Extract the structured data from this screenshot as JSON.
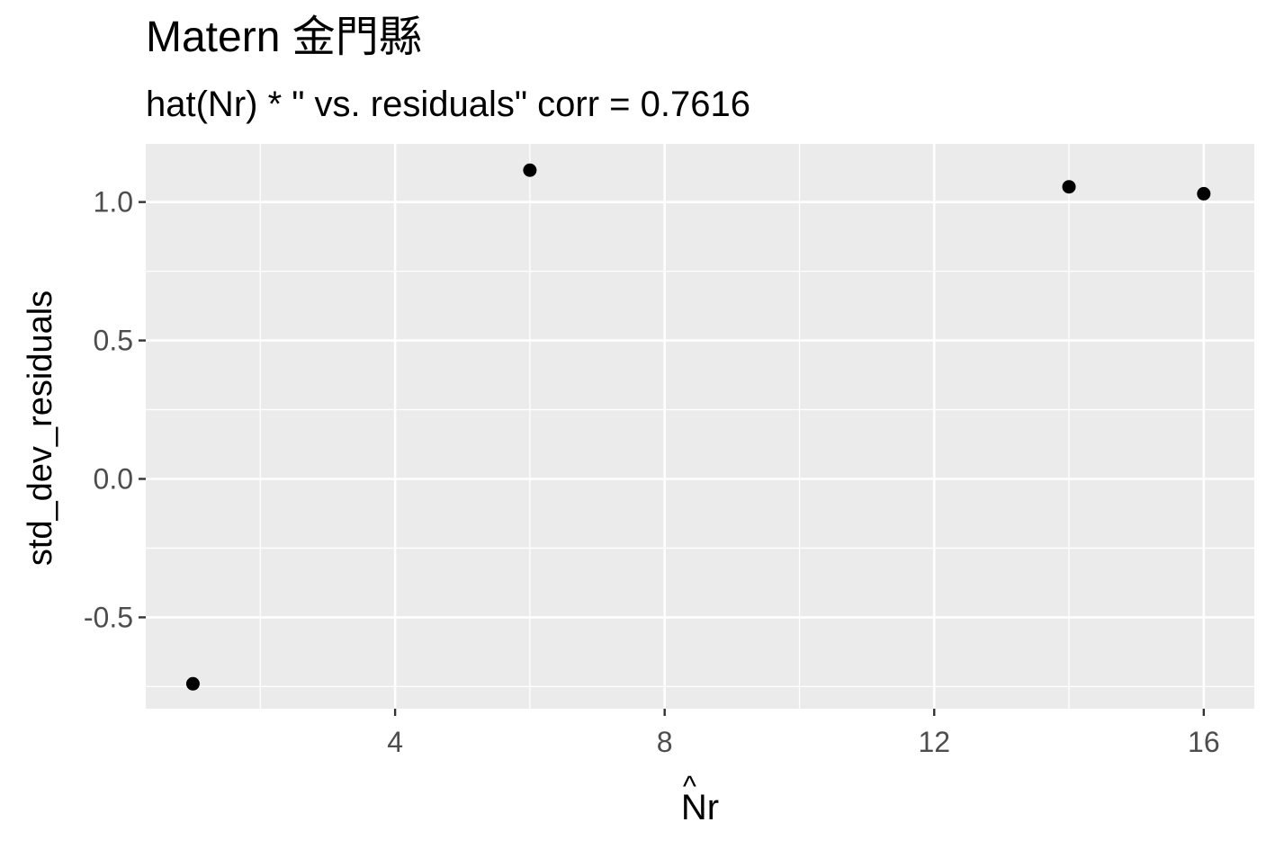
{
  "chart_data": {
    "type": "scatter",
    "title": "Matern 金門縣",
    "subtitle": "hat(Nr) * \"  vs. residuals\" corr = 0.7616",
    "xlabel": "Nr",
    "xlabel_hat": "^",
    "ylabel": "std_dev_residuals",
    "xlim": [
      0.3,
      16.75
    ],
    "ylim": [
      -0.83,
      1.21
    ],
    "x_ticks": [
      4,
      8,
      12,
      16
    ],
    "x_tick_labels": [
      "4",
      "8",
      "12",
      "16"
    ],
    "x_minor": [
      2,
      6,
      10,
      14
    ],
    "y_ticks": [
      -0.5,
      0.0,
      0.5,
      1.0
    ],
    "y_tick_labels": [
      "-0.5",
      "0.0",
      "0.5",
      "1.0"
    ],
    "y_minor": [
      -0.75,
      -0.25,
      0.25,
      0.75
    ],
    "grid": true,
    "series": [
      {
        "x": [
          1,
          6,
          14,
          16
        ],
        "y": [
          -0.74,
          1.115,
          1.055,
          1.03
        ]
      }
    ],
    "colors": {
      "panel": "#EBEBEB",
      "grid": "#FFFFFF",
      "point": "#000000",
      "tick_text": "#4D4D4D"
    }
  }
}
